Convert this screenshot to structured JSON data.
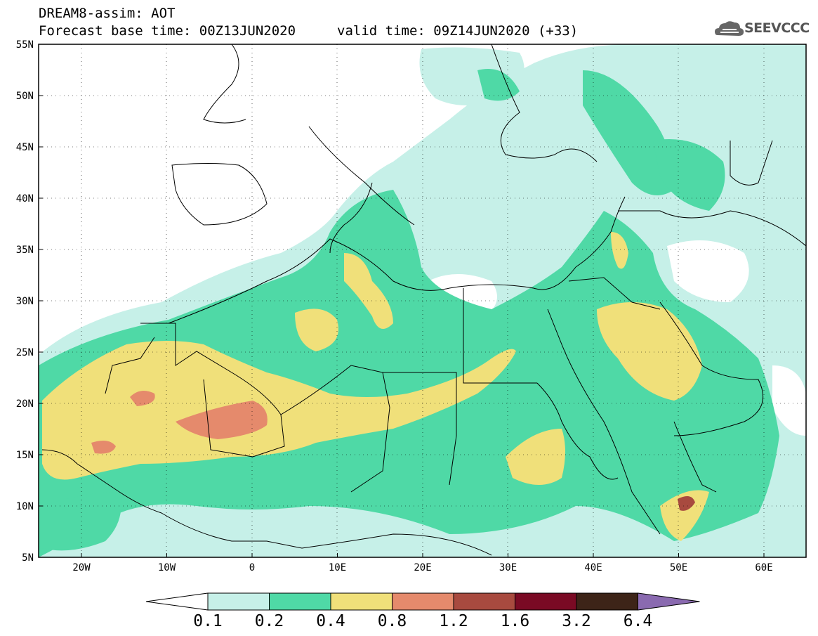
{
  "header": {
    "line1": "DREAM8-assim: AOT",
    "line2a": "Forecast base time: 00Z13JUN2020",
    "line2b": "valid time: 09Z14JUN2020 (+33)"
  },
  "logo": {
    "text": "SEEVCCC",
    "icon": "cloud-icon"
  },
  "axes": {
    "lat_labels": [
      "55N",
      "50N",
      "45N",
      "40N",
      "35N",
      "30N",
      "25N",
      "20N",
      "15N",
      "10N",
      "5N"
    ],
    "lon_labels": [
      "20W",
      "10W",
      "0",
      "10E",
      "20E",
      "30E",
      "40E",
      "50E",
      "60E"
    ]
  },
  "colorbar": {
    "labels": [
      "0.1",
      "0.2",
      "0.4",
      "0.8",
      "1.2",
      "1.6",
      "3.2",
      "6.4"
    ],
    "colors": [
      "#ffffff",
      "#c6f0e8",
      "#4fd9a6",
      "#f0e07a",
      "#e58a6c",
      "#a84a3f",
      "#7a0a24",
      "#3d2418",
      "#8a6ab0"
    ]
  },
  "map": {
    "lon_range": [
      -25,
      65
    ],
    "lat_range": [
      5,
      55
    ],
    "level_colors": {
      "l1": "#c6f0e8",
      "l2": "#4fd9a6",
      "l3": "#f0e07a",
      "l4": "#e58a6c",
      "l5": "#a84a3f"
    }
  }
}
